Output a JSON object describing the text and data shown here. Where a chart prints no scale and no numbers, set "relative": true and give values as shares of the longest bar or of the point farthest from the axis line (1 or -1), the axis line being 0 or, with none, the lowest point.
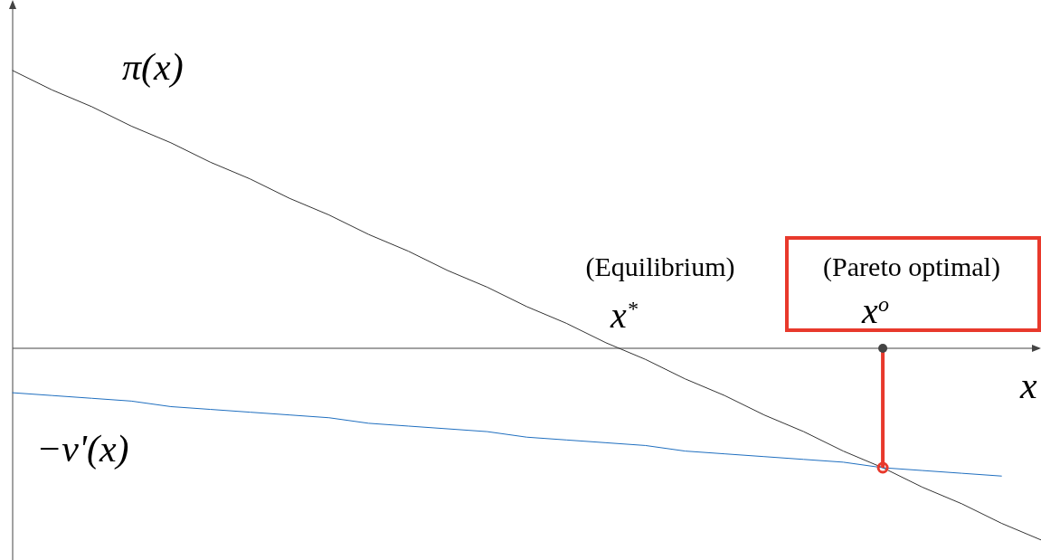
{
  "chart_data": {
    "type": "line",
    "relative": true,
    "xlabel": "x",
    "legend": false,
    "marker": "none",
    "line_style": "solid",
    "categories": [
      null,
      null,
      null,
      null,
      null,
      null,
      null,
      null,
      null,
      null,
      null,
      null,
      null,
      null,
      null,
      null,
      null,
      null,
      null,
      null,
      null,
      null,
      null,
      null,
      null,
      null,
      null
    ],
    "series": [
      {
        "name": "π(x)",
        "color": "#333333",
        "values": [
          1.0,
          0.93,
          0.87,
          0.8,
          0.74,
          0.67,
          0.61,
          0.54,
          0.48,
          0.41,
          0.35,
          0.28,
          0.22,
          0.15,
          0.09,
          0.02,
          -0.04,
          -0.11,
          -0.17,
          -0.24,
          -0.3,
          -0.37,
          -0.43,
          -0.5,
          -0.56,
          -0.63,
          -0.69
        ]
      },
      {
        "name": "−v'(x)",
        "color": "#1f6fc0",
        "values": [
          -0.16,
          -0.17,
          -0.18,
          -0.19,
          -0.21,
          -0.22,
          -0.23,
          -0.24,
          -0.25,
          -0.27,
          -0.28,
          -0.29,
          -0.3,
          -0.32,
          -0.33,
          -0.34,
          -0.35,
          -0.37,
          -0.38,
          -0.39,
          -0.4,
          -0.41,
          -0.43,
          -0.44,
          -0.45,
          -0.46,
          null
        ]
      }
    ],
    "annotations": [
      "(Equilibrium)",
      "x$^{*}$",
      "(Pareto optimal)",
      "x$^{o}$"
    ]
  }
}
